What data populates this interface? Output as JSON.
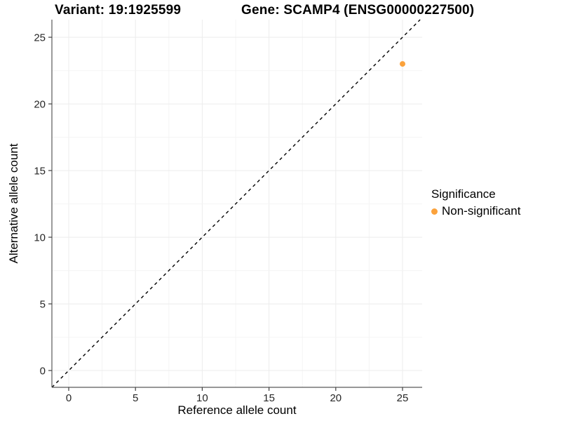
{
  "titles": {
    "variant": "Variant: 19:1925599",
    "gene": "Gene: SCAMP4 (ENSG00000227500)"
  },
  "chart_data": {
    "type": "scatter",
    "title": "Variant: 19:1925599 — Gene: SCAMP4 (ENSG00000227500)",
    "xlabel": "Reference allele count",
    "ylabel": "Alternative allele count",
    "xlim": [
      -1.26,
      26.47
    ],
    "ylim": [
      -1.26,
      26.32
    ],
    "xticks": [
      0,
      5,
      10,
      15,
      20,
      25
    ],
    "yticks": [
      0,
      5,
      10,
      15,
      20,
      25
    ],
    "minor_grid_step": 2.5,
    "grid": "on",
    "points": [
      {
        "x": 25,
        "y": 23,
        "series": "Non-significant"
      }
    ],
    "identity_line": {
      "equation": "y = x",
      "style": "dashed",
      "color": "#000000"
    },
    "series": [
      {
        "name": "Non-significant",
        "color": "#FBA23C"
      }
    ],
    "legend_position": "right"
  },
  "legend": {
    "title": "Significance",
    "items": [
      {
        "label": "Non-significant",
        "color": "#FBA23C"
      }
    ]
  },
  "colors": {
    "accent_orange": "#FBA23C",
    "grid_major": "#ececec",
    "grid_minor": "#f4f4f4",
    "axis_line": "#595959",
    "tick_mark": "#404040",
    "tick_label": "#262626"
  }
}
